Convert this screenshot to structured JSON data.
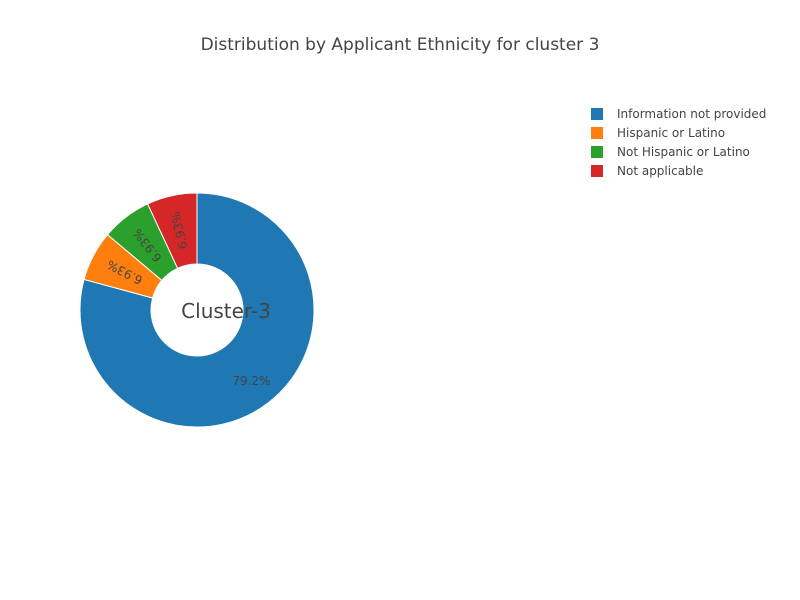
{
  "chart_data": {
    "type": "pie",
    "hole": true,
    "title": "Distribution by Applicant Ethnicity for cluster 3",
    "center_label": "Cluster-3",
    "legend_position": "top-right",
    "slices": [
      {
        "label": "Information not provided",
        "value": 79.2,
        "text": "79.2%",
        "color": "#1f77b4"
      },
      {
        "label": "Hispanic or Latino",
        "value": 6.93,
        "text": "6.93%",
        "color": "#ff7f0e"
      },
      {
        "label": "Not Hispanic or Latino",
        "value": 6.93,
        "text": "6.93%",
        "color": "#2ca02c"
      },
      {
        "label": "Not applicable",
        "value": 6.93,
        "text": "6.93%",
        "color": "#d62728"
      }
    ]
  }
}
